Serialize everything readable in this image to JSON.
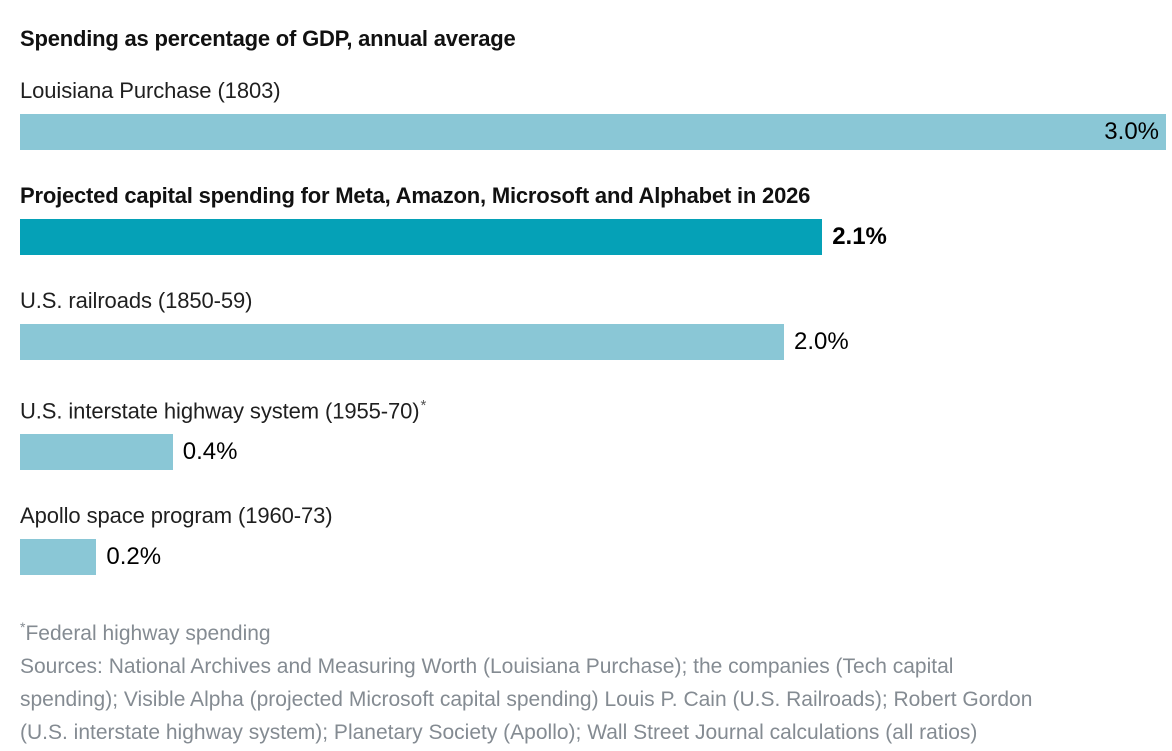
{
  "title": "Spending as percentage of GDP, annual average",
  "colors": {
    "bar_default": "#8ac7d6",
    "bar_highlight": "#05a1b7",
    "text_dark": "#111111",
    "text_notes": "#848b92"
  },
  "chart_data": {
    "type": "bar",
    "orientation": "horizontal",
    "title": "Spending as percentage of GDP, annual average",
    "xlabel": "",
    "ylabel": "",
    "xlim": [
      0,
      3.0
    ],
    "unit": "% of GDP",
    "grid": false,
    "legend": false,
    "categories": [
      "Louisiana Purchase (1803)",
      "Projected capital spending for Meta, Amazon, Microsoft and Alphabet in 2026",
      "U.S. railroads (1850-59)",
      "U.S. interstate highway system (1955-70)",
      "Apollo space program (1960-73)"
    ],
    "values": [
      3.0,
      2.1,
      2.0,
      0.4,
      0.2
    ],
    "rows": [
      {
        "label": "Louisiana Purchase (1803)",
        "marker": "",
        "value": 3.0,
        "display": "3.0%",
        "highlight": false,
        "emphasis": false,
        "value_inside": true
      },
      {
        "label": "Projected capital spending for Meta, Amazon, Microsoft and Alphabet in 2026",
        "marker": "",
        "value": 2.1,
        "display": "2.1%",
        "highlight": true,
        "emphasis": true,
        "value_inside": false
      },
      {
        "label": "U.S. railroads (1850-59)",
        "marker": "",
        "value": 2.0,
        "display": "2.0%",
        "highlight": false,
        "emphasis": false,
        "value_inside": false
      },
      {
        "label": "U.S. interstate highway system (1955-70)",
        "marker": "*",
        "value": 0.4,
        "display": "0.4%",
        "highlight": false,
        "emphasis": false,
        "value_inside": false
      },
      {
        "label": "Apollo space program (1960-73)",
        "marker": "",
        "value": 0.2,
        "display": "0.2%",
        "highlight": false,
        "emphasis": false,
        "value_inside": false
      }
    ]
  },
  "footnote": {
    "marker": "*",
    "text": "Federal highway spending"
  },
  "sources_lines": [
    "Sources: National Archives and Measuring Worth (Louisiana Purchase); the companies (Tech capital",
    "spending); Visible Alpha (projected Microsoft capital spending) Louis P. Cain (U.S. Railroads); Robert Gordon",
    "(U.S. interstate highway system); Planetary Society (Apollo); Wall Street Journal calculations (all ratios)"
  ]
}
